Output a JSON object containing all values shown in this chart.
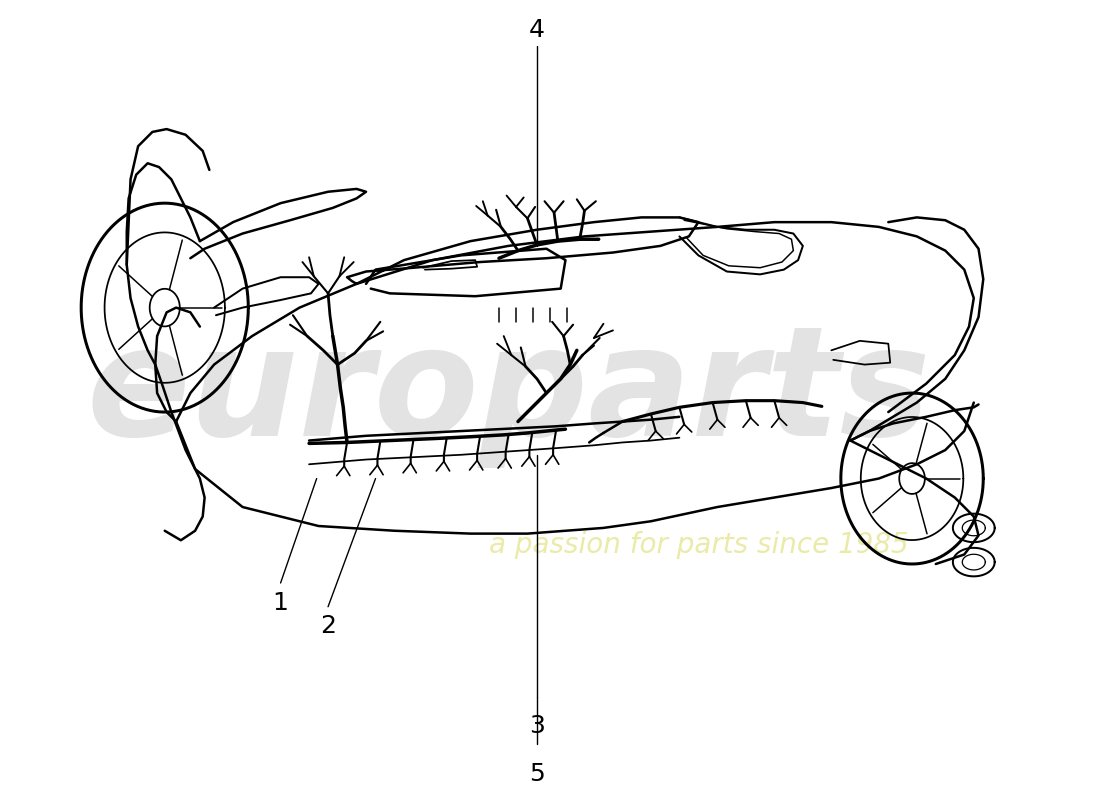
{
  "background_color": "#ffffff",
  "line_color": "#000000",
  "harness_color": "#000000",
  "watermark_text1": "europarts",
  "watermark_text2": "a passion for parts since 1985",
  "part_labels": [
    "1",
    "2",
    "3",
    "4",
    "5"
  ]
}
